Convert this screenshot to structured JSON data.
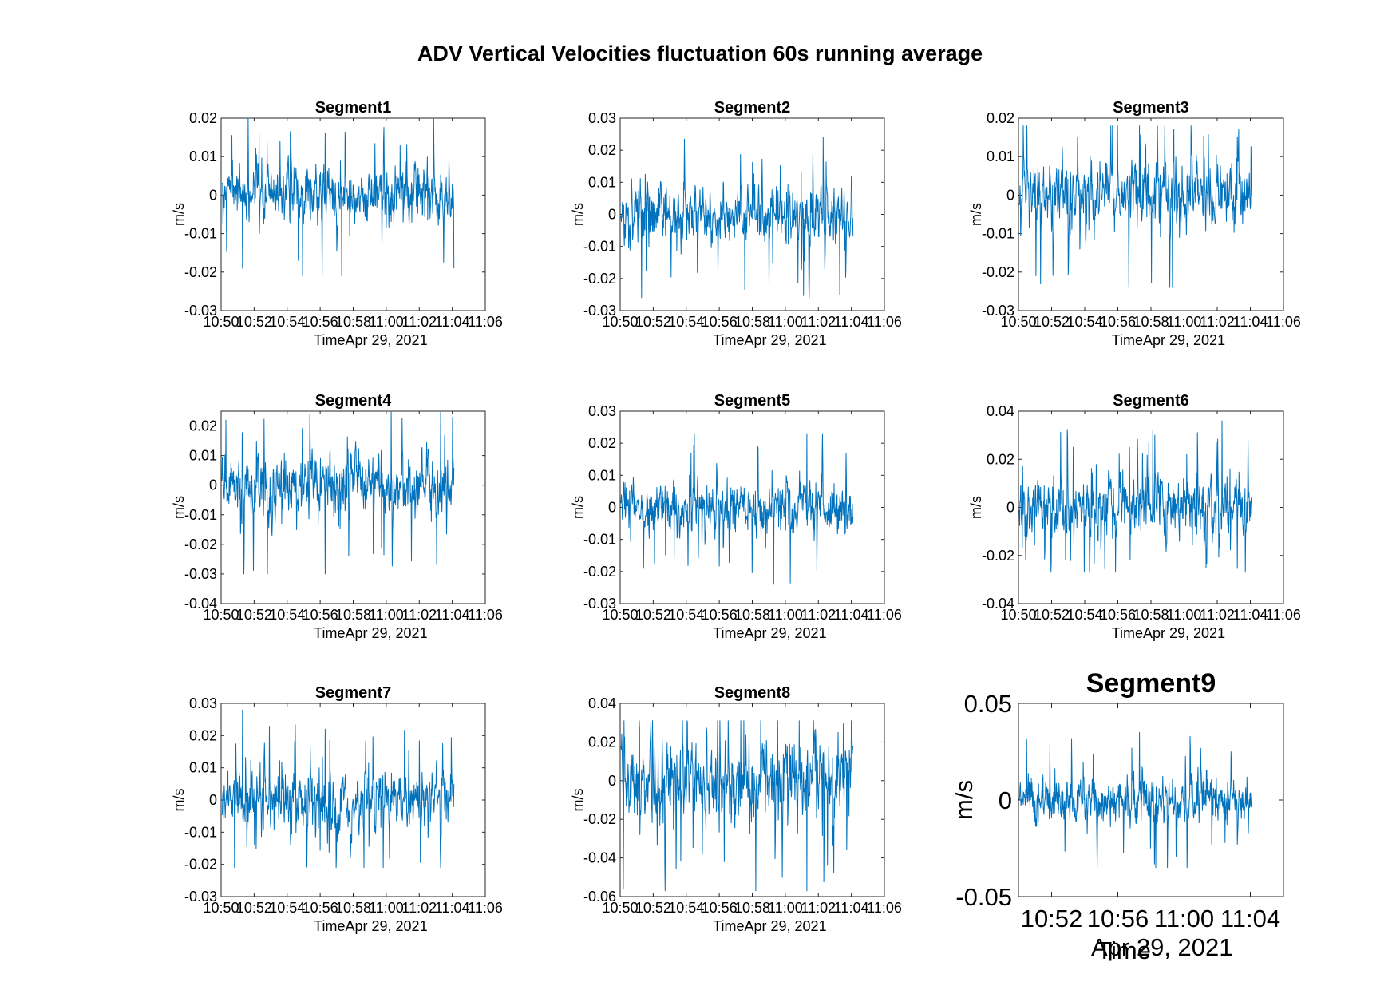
{
  "figure": {
    "suptitle": "ADV Vertical Velocities fluctuation 60s running average",
    "series_color": "#0072BD",
    "axis_color": "#262626"
  },
  "chart_data": [
    {
      "type": "line",
      "title": "Segment1",
      "xlabel": "Time",
      "xsublabel": "Apr 29, 2021",
      "ylabel": "m/s",
      "xlim": [
        "10:50",
        "11:06"
      ],
      "xticks": [
        "10:50",
        "10:52",
        "10:54",
        "10:56",
        "10:58",
        "11:00",
        "11:02",
        "11:04",
        "11:06"
      ],
      "ylim": [
        -0.03,
        0.02
      ],
      "yticks": [
        "0.02",
        "0.01",
        "0",
        "-0.01",
        "-0.02",
        "-0.03"
      ],
      "data_range": [
        "10:50",
        "11:04"
      ],
      "y_min": -0.021,
      "y_max": 0.02,
      "y_mean": 0.0,
      "peaks": [
        {
          "t": "10:52",
          "y": 0.016
        },
        {
          "t": "10:51",
          "y": -0.019
        },
        {
          "t": "10:56",
          "y": 0.016
        },
        {
          "t": "10:57",
          "y": -0.021
        },
        {
          "t": "11:04",
          "y": 0.02
        },
        {
          "t": "11:04",
          "y": -0.019
        }
      ]
    },
    {
      "type": "line",
      "title": "Segment2",
      "xlabel": "Time",
      "xsublabel": "Apr 29, 2021",
      "ylabel": "m/s",
      "xlim": [
        "10:50",
        "11:06"
      ],
      "xticks": [
        "10:50",
        "10:52",
        "10:54",
        "10:56",
        "10:58",
        "11:00",
        "11:02",
        "11:04",
        "11:06"
      ],
      "ylim": [
        -0.03,
        0.03
      ],
      "yticks": [
        "0.03",
        "0.02",
        "0.01",
        "0",
        "-0.01",
        "-0.02",
        "-0.03"
      ],
      "data_range": [
        "10:50",
        "11:04"
      ],
      "y_min": -0.026,
      "y_max": 0.025,
      "y_mean": 0.0,
      "peaks": [
        {
          "t": "10:51",
          "y": 0.025
        },
        {
          "t": "10:51",
          "y": -0.026
        },
        {
          "t": "11:02",
          "y": 0.024
        },
        {
          "t": "11:03",
          "y": -0.025
        }
      ]
    },
    {
      "type": "line",
      "title": "Segment3",
      "xlabel": "Time",
      "xsublabel": "Apr 29, 2021",
      "ylabel": "m/s",
      "xlim": [
        "10:50",
        "11:06"
      ],
      "xticks": [
        "10:50",
        "10:52",
        "10:54",
        "10:56",
        "10:58",
        "11:00",
        "11:02",
        "11:04",
        "11:06"
      ],
      "ylim": [
        -0.03,
        0.02
      ],
      "yticks": [
        "0.02",
        "0.01",
        "0",
        "-0.01",
        "-0.02",
        "-0.03"
      ],
      "data_range": [
        "10:50",
        "11:04"
      ],
      "y_min": -0.024,
      "y_max": 0.018,
      "y_mean": 0.0,
      "peaks": [
        {
          "t": "10:50",
          "y": 0.018
        },
        {
          "t": "10:57",
          "y": 0.018
        },
        {
          "t": "10:59",
          "y": -0.024
        },
        {
          "t": "11:03",
          "y": 0.017
        }
      ]
    },
    {
      "type": "line",
      "title": "Segment4",
      "xlabel": "Time",
      "xsublabel": "Apr 29, 2021",
      "ylabel": "m/s",
      "xlim": [
        "10:50",
        "11:06"
      ],
      "xticks": [
        "10:50",
        "10:52",
        "10:54",
        "10:56",
        "10:58",
        "11:00",
        "11:02",
        "11:04",
        "11:06"
      ],
      "ylim": [
        -0.04,
        0.025
      ],
      "yticks": [
        "0.02",
        "0.01",
        "0",
        "-0.01",
        "-0.02",
        "-0.03",
        "-0.04"
      ],
      "data_range": [
        "10:50",
        "11:04"
      ],
      "y_min": -0.03,
      "y_max": 0.025,
      "y_mean": 0.0,
      "peaks": [
        {
          "t": "10:50",
          "y": 0.022
        },
        {
          "t": "10:56",
          "y": -0.03
        },
        {
          "t": "11:00",
          "y": 0.025
        },
        {
          "t": "11:03",
          "y": 0.025
        }
      ]
    },
    {
      "type": "line",
      "title": "Segment5",
      "xlabel": "Time",
      "xsublabel": "Apr 29, 2021",
      "ylabel": "m/s",
      "xlim": [
        "10:50",
        "11:06"
      ],
      "xticks": [
        "10:50",
        "10:52",
        "10:54",
        "10:56",
        "10:58",
        "11:00",
        "11:02",
        "11:04",
        "11:06"
      ],
      "ylim": [
        -0.03,
        0.03
      ],
      "yticks": [
        "0.03",
        "0.02",
        "0.01",
        "0",
        "-0.01",
        "-0.02",
        "-0.03"
      ],
      "data_range": [
        "10:50",
        "11:04"
      ],
      "y_min": -0.024,
      "y_max": 0.023,
      "y_mean": 0.0,
      "peaks": [
        {
          "t": "10:54",
          "y": 0.017
        },
        {
          "t": "10:59",
          "y": -0.024
        },
        {
          "t": "11:01",
          "y": 0.023
        }
      ]
    },
    {
      "type": "line",
      "title": "Segment6",
      "xlabel": "Time",
      "xsublabel": "Apr 29, 2021",
      "ylabel": "m/s",
      "xlim": [
        "10:50",
        "11:06"
      ],
      "xticks": [
        "10:50",
        "10:52",
        "10:54",
        "10:56",
        "10:58",
        "11:00",
        "11:02",
        "11:04",
        "11:06"
      ],
      "ylim": [
        -0.04,
        0.04
      ],
      "yticks": [
        "0.04",
        "0.02",
        "0",
        "-0.02",
        "-0.04"
      ],
      "data_range": [
        "10:50",
        "11:04"
      ],
      "y_min": -0.027,
      "y_max": 0.036,
      "y_mean": 0.0,
      "peaks": [
        {
          "t": "10:53",
          "y": 0.025
        },
        {
          "t": "10:54",
          "y": -0.027
        },
        {
          "t": "11:02",
          "y": 0.036
        }
      ]
    },
    {
      "type": "line",
      "title": "Segment7",
      "xlabel": "Time",
      "xsublabel": "Apr 29, 2021",
      "ylabel": "m/s",
      "xlim": [
        "10:50",
        "11:06"
      ],
      "xticks": [
        "10:50",
        "10:52",
        "10:54",
        "10:56",
        "10:58",
        "11:00",
        "11:02",
        "11:04",
        "11:06"
      ],
      "ylim": [
        -0.03,
        0.03
      ],
      "yticks": [
        "0.03",
        "0.02",
        "0.01",
        "0",
        "-0.01",
        "-0.02",
        "-0.03"
      ],
      "data_range": [
        "10:50",
        "11:04"
      ],
      "y_min": -0.021,
      "y_max": 0.028,
      "y_mean": 0.0,
      "peaks": [
        {
          "t": "10:51",
          "y": 0.028
        },
        {
          "t": "10:56",
          "y": 0.022
        },
        {
          "t": "11:03",
          "y": -0.021
        }
      ]
    },
    {
      "type": "line",
      "title": "Segment8",
      "xlabel": "Time",
      "xsublabel": "Apr 29, 2021",
      "ylabel": "m/s",
      "xlim": [
        "10:50",
        "11:06"
      ],
      "xticks": [
        "10:50",
        "10:52",
        "10:54",
        "10:56",
        "10:58",
        "11:00",
        "11:02",
        "11:04",
        "11:06"
      ],
      "ylim": [
        -0.06,
        0.04
      ],
      "yticks": [
        "0.04",
        "0.02",
        "0",
        "-0.02",
        "-0.04",
        "-0.06"
      ],
      "data_range": [
        "10:50",
        "11:04"
      ],
      "y_min": -0.057,
      "y_max": 0.031,
      "y_mean": 0.0,
      "peaks": [
        {
          "t": "10:57",
          "y": 0.031
        },
        {
          "t": "10:56",
          "y": -0.042
        },
        {
          "t": "11:01",
          "y": -0.057
        }
      ]
    },
    {
      "type": "line",
      "title": "Segment9",
      "xlabel": "Time",
      "xsublabel": "Apr 29, 2021",
      "ylabel": "m/s",
      "xlim": [
        "10:50",
        "11:06"
      ],
      "xticks": [
        "10:52",
        "10:56",
        "11:00",
        "11:04"
      ],
      "ylim": [
        -0.05,
        0.05
      ],
      "yticks": [
        "0.05",
        "0",
        "-0.05"
      ],
      "data_range": [
        "10:50",
        "11:04"
      ],
      "y_min": -0.035,
      "y_max": 0.035,
      "y_mean": 0.0,
      "peaks": [
        {
          "t": "10:57",
          "y": 0.035
        },
        {
          "t": "10:58",
          "y": -0.035
        }
      ]
    }
  ]
}
